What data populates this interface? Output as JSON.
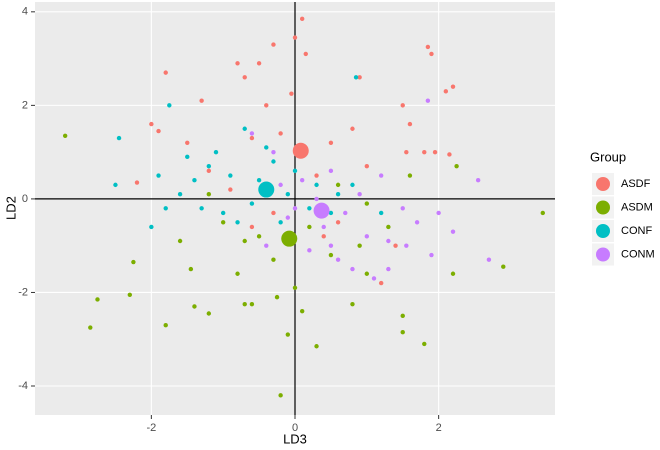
{
  "chart_data": {
    "type": "scatter",
    "x_label": "LD3",
    "y_label": "LD2",
    "xlim": [
      -3.62,
      3.62
    ],
    "ylim": [
      -4.62,
      4.21
    ],
    "xticks": [
      -2,
      0,
      2
    ],
    "yticks": [
      -4,
      -2,
      0,
      2,
      4
    ],
    "grid": true,
    "hline": 0,
    "vline": 0,
    "legend_title": "Group",
    "legend_position": "right",
    "series": [
      {
        "name": "ASDF",
        "color": "#F8766D",
        "centroid": [
          0.08,
          1.03
        ],
        "x": [
          -1.8,
          -2.2,
          -2.0,
          -1.9,
          -1.3,
          -0.8,
          -0.5,
          -0.7,
          -0.3,
          0.0,
          0.1,
          0.15,
          0.9,
          1.85,
          1.9,
          2.1,
          2.2,
          1.5,
          1.6,
          1.55,
          1.8,
          -1.5,
          -0.6,
          -0.2,
          0.5,
          0.8,
          1.0,
          -1.2,
          -0.9,
          0.3,
          -0.3,
          0.6,
          1.4,
          1.2,
          0.4,
          -0.6,
          2.15,
          1.95,
          -0.05,
          -0.4
        ],
        "y": [
          2.7,
          0.35,
          1.6,
          1.45,
          2.1,
          2.9,
          2.9,
          2.6,
          3.3,
          3.45,
          3.85,
          3.1,
          2.6,
          3.25,
          3.1,
          2.3,
          2.4,
          2.0,
          1.6,
          1.0,
          1.0,
          1.2,
          1.3,
          1.4,
          1.2,
          1.5,
          0.7,
          0.6,
          0.2,
          0.5,
          -0.3,
          -0.5,
          -1.0,
          -1.8,
          -0.8,
          -0.6,
          0.95,
          1.0,
          2.25,
          2.0
        ]
      },
      {
        "name": "ASDM",
        "color": "#7CAE00",
        "centroid": [
          -0.08,
          -0.85
        ],
        "x": [
          -3.2,
          -2.85,
          -2.75,
          -2.3,
          -2.25,
          -1.8,
          -1.45,
          -1.4,
          -1.2,
          -0.7,
          -0.6,
          -0.2,
          0.1,
          -0.1,
          0.3,
          0.8,
          1.5,
          1.5,
          1.8,
          2.2,
          2.9,
          3.45,
          2.25,
          1.6,
          1.0,
          0.5,
          -0.5,
          -1.0,
          -1.6,
          -0.8,
          -0.3,
          0.2,
          0.9,
          1.3,
          -1.2,
          0.6,
          -0.7,
          0.0,
          -0.25,
          1.0
        ],
        "y": [
          1.35,
          -2.75,
          -2.15,
          -2.05,
          -1.35,
          -2.7,
          -1.5,
          -2.3,
          -2.45,
          -2.25,
          -2.25,
          -4.2,
          -2.4,
          -2.9,
          -3.15,
          -2.25,
          -2.5,
          -2.85,
          -3.1,
          -1.6,
          -1.45,
          -0.3,
          0.7,
          0.5,
          -0.1,
          -1.2,
          -0.8,
          -0.5,
          -0.9,
          -1.6,
          -1.3,
          -0.6,
          -1.0,
          -0.6,
          0.1,
          0.3,
          -0.9,
          -1.9,
          -2.1,
          -1.6
        ]
      },
      {
        "name": "CONF",
        "color": "#00BFC4",
        "centroid": [
          -0.4,
          0.2
        ],
        "x": [
          -2.5,
          -2.45,
          -1.75,
          -2.0,
          -1.5,
          -1.2,
          -1.6,
          -1.3,
          -0.9,
          -0.7,
          -0.5,
          -0.3,
          0.85,
          0.6,
          0.5,
          0.2,
          -0.1,
          -0.6,
          -1.0,
          -1.4,
          -1.8,
          0.0,
          0.3,
          -0.8,
          -0.2,
          0.8,
          -1.1,
          -0.4,
          -1.9,
          1.2
        ],
        "y": [
          0.3,
          1.3,
          2.0,
          -0.6,
          0.9,
          0.7,
          0.1,
          -0.2,
          0.5,
          1.5,
          0.4,
          0.8,
          2.6,
          0.1,
          -0.3,
          -0.2,
          0.1,
          -0.1,
          -0.3,
          0.4,
          -0.2,
          0.6,
          0.3,
          -0.5,
          -0.5,
          0.3,
          1.0,
          1.1,
          0.5,
          -0.3
        ]
      },
      {
        "name": "CONM",
        "color": "#C77CFF",
        "centroid": [
          0.37,
          -0.25
        ],
        "x": [
          1.85,
          2.55,
          2.7,
          1.55,
          1.3,
          1.0,
          0.7,
          0.5,
          0.4,
          0.9,
          1.7,
          2.0,
          -0.6,
          -0.3,
          0.1,
          0.3,
          -0.1,
          0.6,
          1.1,
          1.5,
          0.2,
          -0.4,
          0.0,
          1.2,
          0.8,
          1.9,
          0.5,
          1.3,
          2.2,
          -0.2
        ],
        "y": [
          2.1,
          0.4,
          -1.3,
          -1.0,
          -1.5,
          -0.8,
          -0.3,
          -1.0,
          -0.6,
          0.1,
          -0.5,
          -0.3,
          1.4,
          1.0,
          0.4,
          0.0,
          -0.4,
          -1.3,
          -1.7,
          -0.2,
          -1.1,
          -1.0,
          -0.2,
          0.5,
          -1.5,
          -1.2,
          0.6,
          -0.9,
          -0.7,
          0.3
        ]
      }
    ]
  }
}
